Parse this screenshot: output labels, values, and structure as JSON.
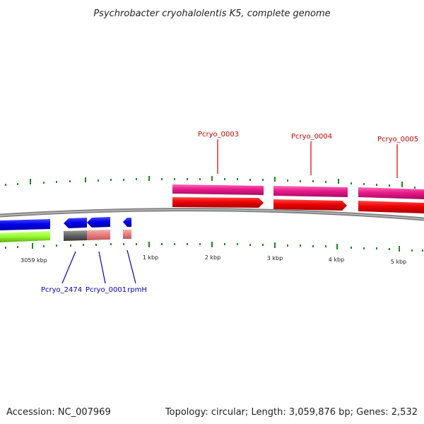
{
  "title": "Psychrobacter cryohalolentis K5, complete genome",
  "footer": {
    "accession": "Accession: NC_007969",
    "topology": "Topology: circular; Length: 3,059,876 bp; Genes: 2,532"
  },
  "scale_labels": [
    "3059 kbp",
    "1 kbp",
    "2 kbp",
    "3 kbp",
    "4 kbp",
    "5 kbp"
  ],
  "gene_labels": {
    "top": [
      "Pcryo_0003",
      "Pcryo_0004",
      "Pcryo_0005"
    ],
    "bottom": [
      "Pcryo_2474",
      "Pcryo_0001",
      "rpmH"
    ]
  },
  "colors": {
    "backbone": "#808080",
    "tick": "#1a8a1a",
    "top_label": "#cc0000",
    "bottom_label": "#0000bb",
    "forward_cds": "#ee0000",
    "forward_feature": "#e8198b",
    "reverse_cds": "#0000ee",
    "reverse_feature": "#99ff33",
    "pale_feature": "#e88080",
    "gray_feature": "#666666"
  }
}
